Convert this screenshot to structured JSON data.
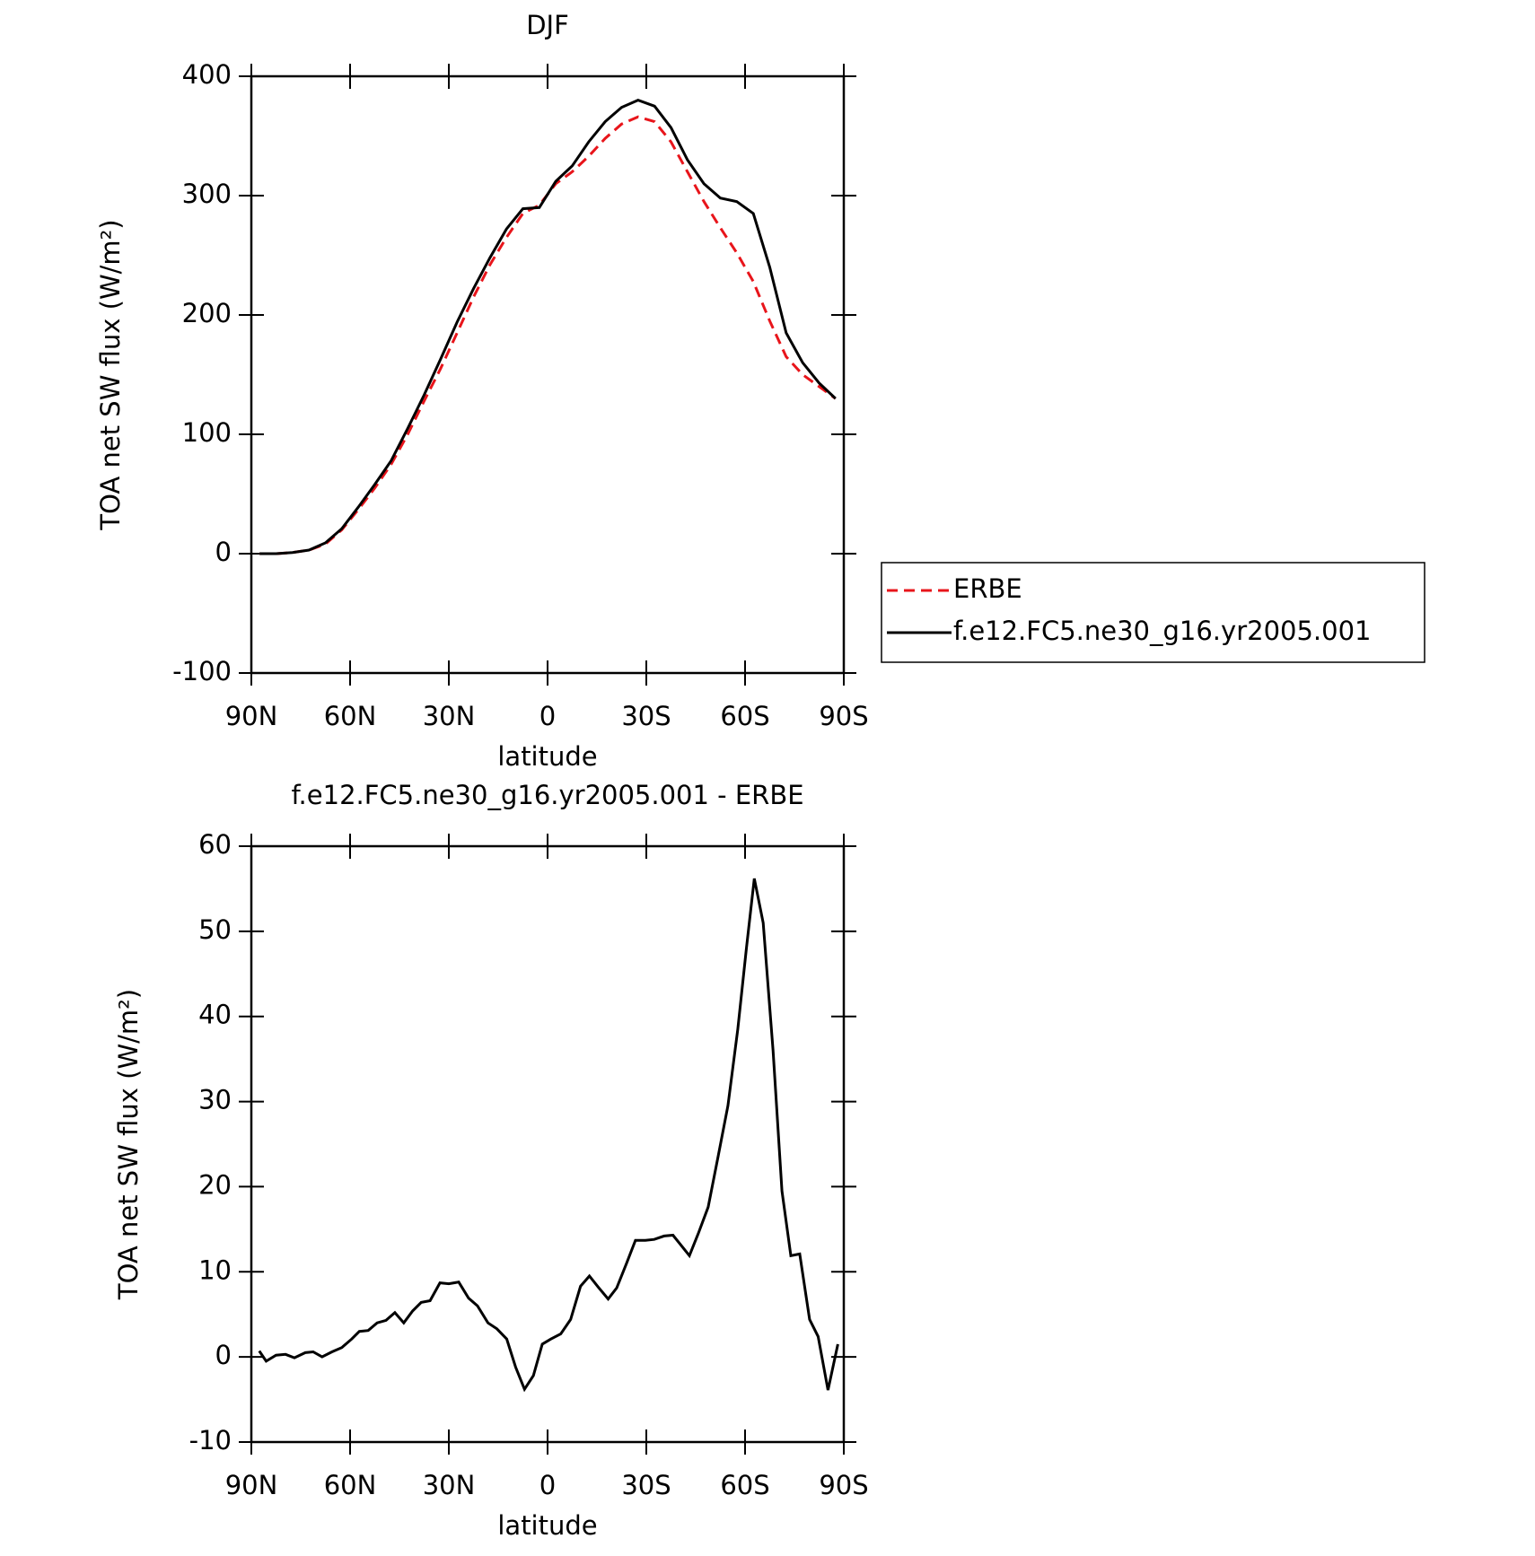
{
  "chart_data": [
    {
      "type": "line",
      "title": "DJF",
      "xlabel": "latitude",
      "ylabel": "TOA net SW flux (W/m²)",
      "x": [
        87.5,
        82.5,
        77.5,
        72.5,
        67.5,
        62.5,
        57.5,
        52.5,
        47.5,
        42.5,
        37.5,
        32.5,
        27.5,
        22.5,
        17.5,
        12.5,
        7.5,
        2.5,
        -2.5,
        -7.5,
        -12.5,
        -17.5,
        -22.5,
        -27.5,
        -32.5,
        -37.5,
        -42.5,
        -47.5,
        -52.5,
        -57.5,
        -62.5,
        -67.5,
        -72.5,
        -77.5,
        -82.5,
        -87.5
      ],
      "series": [
        {
          "name": "ERBE",
          "color": "#e8151b",
          "dash": true,
          "values": [
            0,
            0,
            1,
            3,
            8,
            20,
            37,
            55,
            75,
            100,
            128,
            155,
            185,
            215,
            242,
            265,
            285,
            292,
            310,
            320,
            333,
            348,
            360,
            366,
            362,
            345,
            320,
            295,
            273,
            252,
            228,
            195,
            165,
            150,
            140,
            130
          ]
        },
        {
          "name": "f.e12.FC5.ne30_g16.yr2005.001",
          "color": "#000000",
          "dash": false,
          "values": [
            0,
            0,
            1,
            3,
            9,
            21,
            39,
            58,
            78,
            105,
            133,
            163,
            194,
            222,
            248,
            272,
            289,
            290,
            312,
            325,
            345,
            362,
            374,
            380,
            375,
            357,
            330,
            310,
            298,
            295,
            285,
            240,
            185,
            160,
            143,
            130
          ]
        }
      ],
      "xlim": [
        90,
        -90
      ],
      "xticks": [
        {
          "value": 90,
          "label": "90N"
        },
        {
          "value": 60,
          "label": "60N"
        },
        {
          "value": 30,
          "label": "30N"
        },
        0,
        {
          "value": -30,
          "label": "30S"
        },
        {
          "value": -60,
          "label": "60S"
        },
        {
          "value": -90,
          "label": "90S"
        }
      ],
      "ylim": [
        -100,
        400
      ],
      "yticks": [
        -100,
        0,
        100,
        200,
        300,
        400
      ],
      "legend": "right"
    },
    {
      "type": "line",
      "title": "f.e12.FC5.ne30_g16.yr2005.001 - ERBE",
      "xlabel": "latitude",
      "ylabel": "TOA net SW flux (W/m²)",
      "x": [
        87.6,
        85.5,
        82.5,
        79.6,
        76.9,
        73.6,
        71.2,
        68.5,
        65.5,
        62.5,
        59.5,
        57.2,
        54.5,
        51.8,
        49.1,
        46.4,
        43.7,
        41.0,
        38.4,
        35.7,
        32.7,
        30.0,
        27.0,
        24.0,
        21.3,
        18.1,
        15.4,
        12.4,
        9.7,
        7.0,
        4.3,
        1.6,
        -1.0,
        -4.0,
        -7.0,
        -10.0,
        -12.7,
        -15.4,
        -18.4,
        -21.0,
        -24.0,
        -26.7,
        -29.7,
        -32.4,
        -35.4,
        -38.1,
        -40.4,
        -43.1,
        -45.8,
        -48.8,
        -51.8,
        -54.8,
        -57.8,
        -60.4,
        -62.8,
        -65.5,
        -68.5,
        -71.2,
        -73.9,
        -76.6,
        -79.6,
        -82.2,
        -85.2,
        -88.2
      ],
      "series": [
        {
          "name": "f.e12.FC5.ne30_g16.yr2005.001 - ERBE",
          "color": "#000000",
          "dash": false,
          "values": [
            0.7,
            -0.5,
            0.2,
            0.3,
            -0.1,
            0.5,
            0.6,
            0.0,
            0.6,
            1.1,
            2.1,
            3.0,
            3.1,
            4.0,
            4.3,
            5.2,
            4.0,
            5.4,
            6.4,
            6.6,
            8.7,
            8.6,
            8.8,
            6.9,
            6.0,
            4.0,
            3.3,
            2.1,
            -1.2,
            -3.8,
            -2.2,
            1.5,
            2.1,
            2.7,
            4.4,
            8.3,
            9.5,
            8.2,
            6.8,
            8.1,
            11.0,
            13.7,
            13.7,
            13.8,
            14.2,
            14.3,
            13.2,
            11.9,
            14.5,
            17.6,
            23.5,
            29.5,
            38.5,
            48.0,
            56.2,
            51.0,
            36.0,
            19.5,
            11.9,
            12.1,
            4.4,
            2.4,
            -3.9,
            1.5
          ]
        }
      ],
      "xlim": [
        90,
        -90
      ],
      "xticks": [
        {
          "value": 90,
          "label": "90N"
        },
        {
          "value": 60,
          "label": "60N"
        },
        {
          "value": 30,
          "label": "30N"
        },
        0,
        {
          "value": -30,
          "label": "30S"
        },
        {
          "value": -60,
          "label": "60S"
        },
        {
          "value": -90,
          "label": "90S"
        }
      ],
      "ylim": [
        -10,
        60
      ],
      "yticks": [
        -10,
        0,
        10,
        20,
        30,
        40,
        50,
        60
      ]
    }
  ]
}
